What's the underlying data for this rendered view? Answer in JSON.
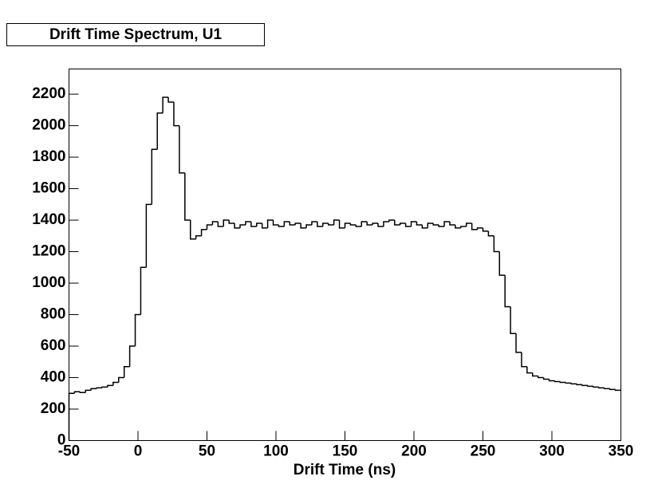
{
  "chart_data": {
    "type": "histogram",
    "title": "Drift Time Spectrum, U1",
    "x_label": "Drift Time (ns)",
    "bins": [
      -50,
      -46,
      -42,
      -38,
      -34,
      -30,
      -26,
      -22,
      -18,
      -14,
      -10,
      -6,
      -2,
      2,
      6,
      10,
      14,
      18,
      22,
      26,
      30,
      34,
      38,
      42,
      46,
      50,
      54,
      58,
      62,
      66,
      70,
      74,
      78,
      82,
      86,
      90,
      94,
      98,
      102,
      106,
      110,
      114,
      118,
      122,
      126,
      130,
      134,
      138,
      142,
      146,
      150,
      154,
      158,
      162,
      166,
      170,
      174,
      178,
      182,
      186,
      190,
      194,
      198,
      202,
      206,
      210,
      214,
      218,
      222,
      226,
      230,
      234,
      238,
      242,
      246,
      250,
      254,
      258,
      262,
      266,
      270,
      274,
      278,
      282,
      286,
      290,
      294,
      298,
      302,
      306,
      310,
      314,
      318,
      322,
      326,
      330,
      334,
      338,
      342,
      346,
      350
    ],
    "values": [
      300,
      310,
      305,
      320,
      330,
      335,
      340,
      350,
      370,
      400,
      470,
      600,
      800,
      1100,
      1500,
      1850,
      2080,
      2180,
      2150,
      2000,
      1700,
      1400,
      1280,
      1300,
      1340,
      1370,
      1390,
      1360,
      1400,
      1380,
      1350,
      1370,
      1390,
      1360,
      1380,
      1350,
      1400,
      1370,
      1360,
      1390,
      1370,
      1380,
      1350,
      1370,
      1390,
      1360,
      1380,
      1370,
      1400,
      1350,
      1380,
      1370,
      1360,
      1390,
      1370,
      1380,
      1360,
      1390,
      1400,
      1370,
      1380,
      1360,
      1390,
      1370,
      1350,
      1380,
      1370,
      1360,
      1390,
      1370,
      1350,
      1360,
      1380,
      1340,
      1350,
      1330,
      1300,
      1200,
      1050,
      850,
      680,
      560,
      470,
      430,
      410,
      400,
      390,
      380,
      375,
      370,
      365,
      360,
      355,
      350,
      345,
      340,
      335,
      330,
      325,
      320
    ],
    "color": "#000000",
    "xlim": [
      -50,
      350
    ],
    "xticks": [
      -50,
      0,
      50,
      100,
      150,
      200,
      250,
      300,
      350
    ],
    "ylim": [
      0,
      2360
    ],
    "yticks": [
      0,
      200,
      400,
      600,
      800,
      1000,
      1200,
      1400,
      1600,
      1800,
      2000,
      2200
    ]
  }
}
